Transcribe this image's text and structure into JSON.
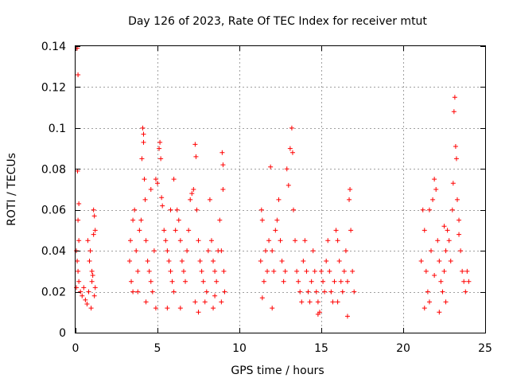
{
  "chart_data": {
    "type": "scatter",
    "title": "Day 126 of 2023, Rate Of TEC Index for receiver mtut",
    "xlabel": "GPS time / hours",
    "ylabel": "ROTI / TECUs",
    "xlim": [
      0,
      25
    ],
    "ylim": [
      0,
      0.14
    ],
    "xticks": [
      0,
      5,
      10,
      15,
      20,
      25
    ],
    "yticks": [
      0,
      0.02,
      0.04,
      0.06,
      0.08,
      0.1,
      0.12,
      0.14
    ],
    "xtick_labels": [
      "0",
      "5",
      "10",
      "15",
      "20",
      "25"
    ],
    "ytick_labels": [
      "0",
      "0.02",
      "0.04",
      "0.06",
      "0.08",
      "0.1",
      "0.12",
      "0.14"
    ],
    "grid": true,
    "marker": "+",
    "marker_color": "#ff0000",
    "series": [
      {
        "points": [
          [
            0.1,
            0.139
          ],
          [
            0.15,
            0.126
          ],
          [
            0.12,
            0.079
          ],
          [
            0.2,
            0.063
          ],
          [
            0.15,
            0.055
          ],
          [
            0.2,
            0.045
          ],
          [
            0.05,
            0.04
          ],
          [
            0.1,
            0.035
          ],
          [
            0.15,
            0.03
          ],
          [
            0.2,
            0.025
          ],
          [
            0.05,
            0.022
          ],
          [
            0.3,
            0.02
          ],
          [
            0.4,
            0.018
          ],
          [
            0.5,
            0.022
          ],
          [
            0.6,
            0.016
          ],
          [
            0.7,
            0.014
          ],
          [
            0.8,
            0.02
          ],
          [
            0.9,
            0.04
          ],
          [
            0.75,
            0.045
          ],
          [
            0.85,
            0.035
          ],
          [
            1.0,
            0.03
          ],
          [
            1.05,
            0.028
          ],
          [
            1.1,
            0.06
          ],
          [
            1.15,
            0.057
          ],
          [
            1.2,
            0.05
          ],
          [
            1.1,
            0.048
          ],
          [
            1.2,
            0.022
          ],
          [
            1.15,
            0.018
          ],
          [
            0.95,
            0.012
          ],
          [
            1.0,
            0.025
          ],
          [
            3.3,
            0.035
          ],
          [
            3.35,
            0.045
          ],
          [
            3.4,
            0.025
          ],
          [
            3.5,
            0.02
          ],
          [
            3.5,
            0.055
          ],
          [
            3.6,
            0.06
          ],
          [
            3.7,
            0.04
          ],
          [
            3.8,
            0.03
          ],
          [
            3.9,
            0.05
          ],
          [
            4.0,
            0.055
          ],
          [
            4.05,
            0.085
          ],
          [
            4.1,
            0.1
          ],
          [
            4.15,
            0.097
          ],
          [
            4.15,
            0.093
          ],
          [
            4.2,
            0.075
          ],
          [
            4.25,
            0.065
          ],
          [
            4.3,
            0.045
          ],
          [
            4.4,
            0.035
          ],
          [
            4.5,
            0.03
          ],
          [
            4.6,
            0.025
          ],
          [
            4.7,
            0.02
          ],
          [
            4.8,
            0.04
          ],
          [
            4.9,
            0.075
          ],
          [
            5.0,
            0.073
          ],
          [
            5.1,
            0.09
          ],
          [
            5.15,
            0.093
          ],
          [
            5.2,
            0.085
          ],
          [
            5.25,
            0.066
          ],
          [
            5.3,
            0.062
          ],
          [
            5.4,
            0.05
          ],
          [
            5.5,
            0.045
          ],
          [
            5.6,
            0.04
          ],
          [
            5.7,
            0.035
          ],
          [
            5.8,
            0.03
          ],
          [
            5.9,
            0.025
          ],
          [
            6.0,
            0.02
          ],
          [
            6.1,
            0.05
          ],
          [
            6.2,
            0.06
          ],
          [
            6.3,
            0.055
          ],
          [
            6.4,
            0.045
          ],
          [
            6.5,
            0.035
          ],
          [
            6.6,
            0.03
          ],
          [
            6.7,
            0.025
          ],
          [
            6.8,
            0.04
          ],
          [
            6.9,
            0.05
          ],
          [
            7.0,
            0.065
          ],
          [
            7.1,
            0.068
          ],
          [
            7.2,
            0.07
          ],
          [
            7.3,
            0.092
          ],
          [
            7.35,
            0.086
          ],
          [
            7.4,
            0.06
          ],
          [
            7.5,
            0.045
          ],
          [
            7.6,
            0.035
          ],
          [
            7.7,
            0.03
          ],
          [
            7.8,
            0.025
          ],
          [
            7.9,
            0.015
          ],
          [
            8.0,
            0.02
          ],
          [
            8.1,
            0.04
          ],
          [
            8.2,
            0.065
          ],
          [
            8.3,
            0.045
          ],
          [
            8.4,
            0.035
          ],
          [
            8.5,
            0.03
          ],
          [
            8.6,
            0.025
          ],
          [
            8.7,
            0.04
          ],
          [
            8.8,
            0.055
          ],
          [
            8.9,
            0.04
          ],
          [
            8.95,
            0.088
          ],
          [
            9.0,
            0.082
          ],
          [
            9.0,
            0.07
          ],
          [
            9.05,
            0.03
          ],
          [
            9.1,
            0.02
          ],
          [
            8.9,
            0.015
          ],
          [
            3.8,
            0.02
          ],
          [
            4.3,
            0.015
          ],
          [
            4.9,
            0.012
          ],
          [
            5.6,
            0.012
          ],
          [
            6.4,
            0.012
          ],
          [
            7.3,
            0.015
          ],
          [
            7.5,
            0.01
          ],
          [
            8.4,
            0.012
          ],
          [
            8.5,
            0.018
          ],
          [
            6.0,
            0.075
          ],
          [
            5.8,
            0.06
          ],
          [
            4.6,
            0.07
          ],
          [
            11.3,
            0.035
          ],
          [
            11.35,
            0.06
          ],
          [
            11.4,
            0.055
          ],
          [
            11.5,
            0.025
          ],
          [
            11.6,
            0.04
          ],
          [
            11.7,
            0.03
          ],
          [
            11.8,
            0.045
          ],
          [
            11.9,
            0.081
          ],
          [
            12.0,
            0.04
          ],
          [
            12.1,
            0.03
          ],
          [
            12.2,
            0.05
          ],
          [
            12.3,
            0.055
          ],
          [
            12.4,
            0.065
          ],
          [
            12.5,
            0.045
          ],
          [
            12.6,
            0.035
          ],
          [
            12.7,
            0.025
          ],
          [
            12.8,
            0.03
          ],
          [
            12.9,
            0.08
          ],
          [
            13.0,
            0.072
          ],
          [
            13.1,
            0.09
          ],
          [
            13.2,
            0.1
          ],
          [
            13.25,
            0.088
          ],
          [
            13.3,
            0.06
          ],
          [
            13.4,
            0.045
          ],
          [
            13.5,
            0.03
          ],
          [
            13.6,
            0.025
          ],
          [
            13.7,
            0.02
          ],
          [
            13.8,
            0.015
          ],
          [
            13.9,
            0.035
          ],
          [
            14.0,
            0.045
          ],
          [
            14.1,
            0.03
          ],
          [
            14.2,
            0.02
          ],
          [
            14.3,
            0.015
          ],
          [
            14.4,
            0.025
          ],
          [
            14.5,
            0.04
          ],
          [
            14.6,
            0.03
          ],
          [
            14.7,
            0.02
          ],
          [
            14.8,
            0.015
          ],
          [
            14.9,
            0.01
          ],
          [
            15.0,
            0.03
          ],
          [
            15.1,
            0.025
          ],
          [
            15.2,
            0.02
          ],
          [
            15.3,
            0.035
          ],
          [
            15.4,
            0.045
          ],
          [
            15.5,
            0.03
          ],
          [
            15.6,
            0.02
          ],
          [
            15.7,
            0.015
          ],
          [
            15.8,
            0.025
          ],
          [
            15.9,
            0.05
          ],
          [
            16.0,
            0.045
          ],
          [
            16.1,
            0.035
          ],
          [
            16.2,
            0.025
          ],
          [
            16.3,
            0.02
          ],
          [
            16.4,
            0.03
          ],
          [
            16.5,
            0.04
          ],
          [
            16.6,
            0.025
          ],
          [
            16.7,
            0.065
          ],
          [
            16.75,
            0.07
          ],
          [
            16.8,
            0.05
          ],
          [
            16.9,
            0.03
          ],
          [
            17.0,
            0.02
          ],
          [
            16.6,
            0.008
          ],
          [
            16.0,
            0.015
          ],
          [
            14.8,
            0.009
          ],
          [
            12.0,
            0.012
          ],
          [
            11.4,
            0.017
          ],
          [
            21.1,
            0.035
          ],
          [
            21.2,
            0.06
          ],
          [
            21.3,
            0.05
          ],
          [
            21.4,
            0.03
          ],
          [
            21.5,
            0.02
          ],
          [
            21.6,
            0.015
          ],
          [
            21.7,
            0.04
          ],
          [
            21.8,
            0.065
          ],
          [
            21.9,
            0.075
          ],
          [
            22.0,
            0.07
          ],
          [
            22.1,
            0.045
          ],
          [
            22.2,
            0.035
          ],
          [
            22.3,
            0.025
          ],
          [
            22.4,
            0.02
          ],
          [
            22.5,
            0.03
          ],
          [
            22.6,
            0.04
          ],
          [
            22.7,
            0.05
          ],
          [
            22.8,
            0.045
          ],
          [
            22.9,
            0.035
          ],
          [
            23.0,
            0.06
          ],
          [
            23.05,
            0.073
          ],
          [
            23.1,
            0.108
          ],
          [
            23.15,
            0.115
          ],
          [
            23.2,
            0.091
          ],
          [
            23.25,
            0.085
          ],
          [
            23.3,
            0.065
          ],
          [
            23.4,
            0.055
          ],
          [
            23.5,
            0.04
          ],
          [
            23.6,
            0.03
          ],
          [
            23.7,
            0.025
          ],
          [
            23.8,
            0.02
          ],
          [
            23.9,
            0.03
          ],
          [
            24.0,
            0.025
          ],
          [
            22.2,
            0.01
          ],
          [
            21.3,
            0.012
          ],
          [
            22.6,
            0.015
          ],
          [
            21.6,
            0.06
          ],
          [
            22.5,
            0.052
          ],
          [
            23.4,
            0.048
          ],
          [
            21.9,
            0.028
          ]
        ]
      }
    ]
  }
}
